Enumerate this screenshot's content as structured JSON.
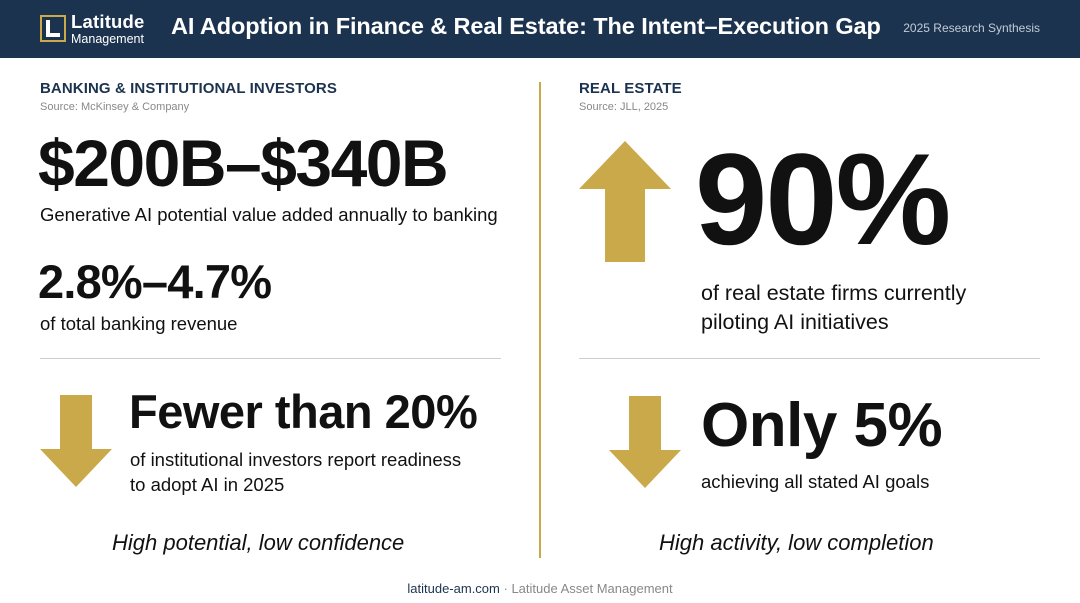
{
  "header": {
    "logo_name": "Latitude",
    "logo_sub": "Management",
    "title": "AI Adoption in Finance & Real Estate: The Intent–Execution Gap",
    "tag": "2025 Research Synthesis"
  },
  "left": {
    "section_title": "BANKING & INSTITUTIONAL INVESTORS",
    "source": "Source: McKinsey & Company",
    "stat1": {
      "value": "$200B–$340B",
      "desc": "Generative AI potential value added annually to banking"
    },
    "stat2": {
      "value": "2.8%–4.7%",
      "desc": "of total banking revenue"
    },
    "stat3": {
      "value": "Fewer than 20%",
      "desc_line1": "of institutional investors report readiness",
      "desc_line2": "to adopt AI in 2025",
      "arrow": "down-arrow-icon"
    },
    "tagline": "High potential, low confidence"
  },
  "right": {
    "section_title": "REAL ESTATE",
    "source": "Source: JLL, 2025",
    "stat1": {
      "value": "90%",
      "desc_line1": "of real estate firms currently",
      "desc_line2": "piloting AI initiatives",
      "arrow": "up-arrow-icon"
    },
    "stat2": {
      "value": "Only 5%",
      "desc": "achieving all stated AI goals",
      "arrow": "down-arrow-icon"
    },
    "tagline": "High activity, low completion"
  },
  "footer": {
    "site": "latitude-am.com",
    "separator": " · ",
    "org": "Latitude Asset Management"
  },
  "colors": {
    "navy": "#1c3350",
    "gold": "#c9a949",
    "text": "#111111"
  }
}
